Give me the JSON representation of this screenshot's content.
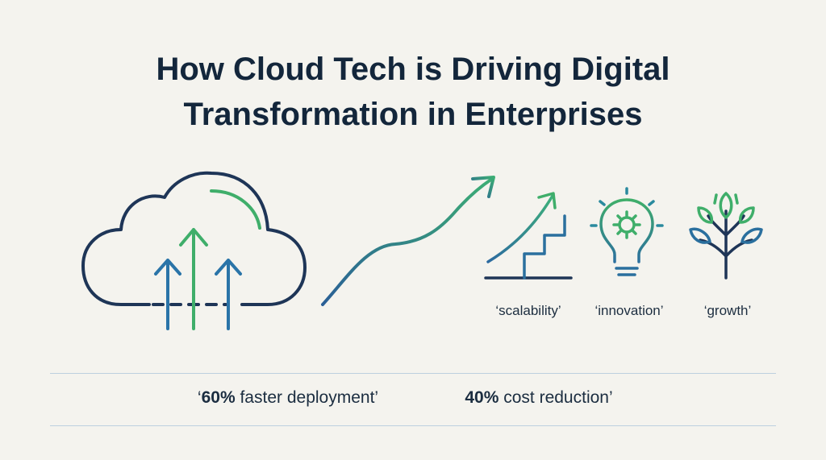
{
  "header": {
    "title": [
      "How Cloud Tech is Driving Digital",
      "Transformation in Enterprises"
    ]
  },
  "icons": [
    {
      "label": "‘scalability’"
    },
    {
      "label": "‘innovation’"
    },
    {
      "label": "‘growth’"
    }
  ],
  "stats": [
    {
      "prefix": "‘",
      "value": "60%",
      "rest": "faster deployment’"
    },
    {
      "value": "40%",
      "rest": "cost reduction’"
    }
  ]
}
